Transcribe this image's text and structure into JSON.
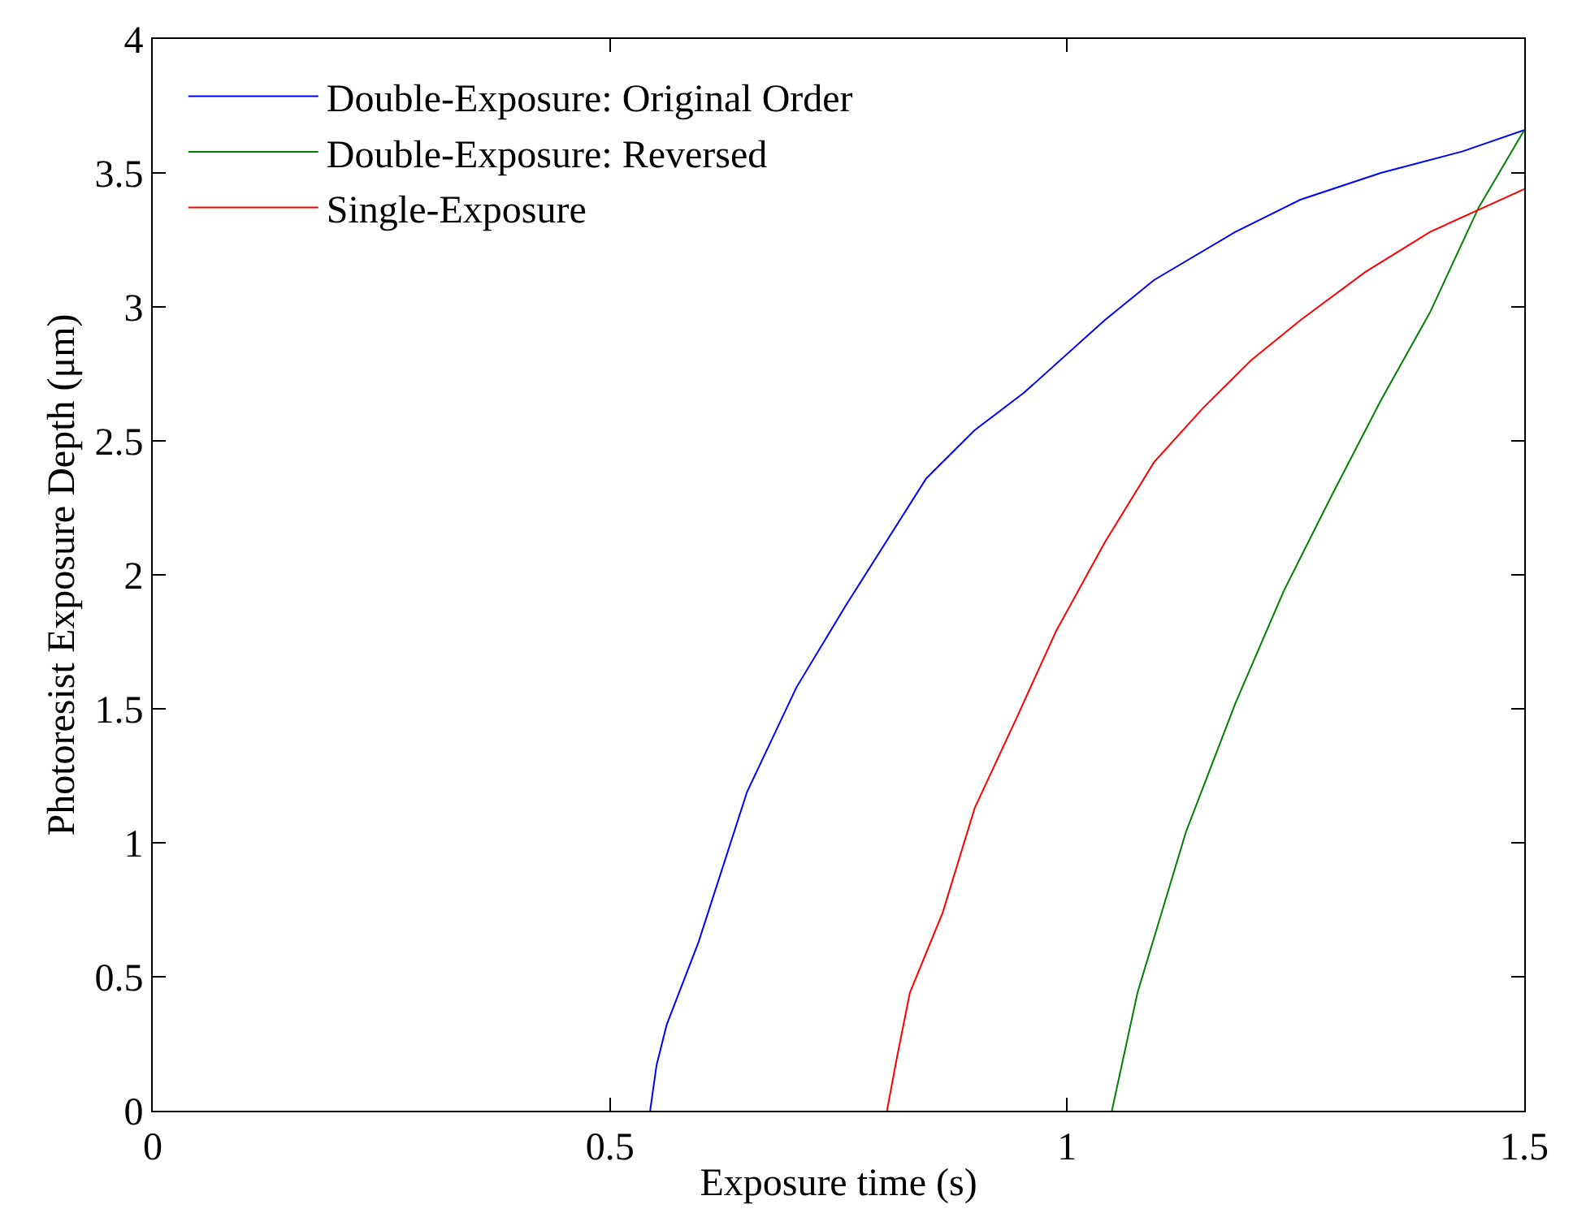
{
  "chart_data": {
    "type": "line",
    "xlabel": "Exposure time (s)",
    "ylabel": "Photoresist Exposure Depth (μm)",
    "xlim": [
      0,
      1.5
    ],
    "xticks": [
      0,
      0.5,
      1,
      1.5
    ],
    "ylim": [
      0,
      4
    ],
    "yticks": [
      0,
      0.5,
      1,
      1.5,
      2,
      2.5,
      3,
      3.5,
      4
    ],
    "legend": "top left",
    "marker": "none",
    "line_style": "solid",
    "series": [
      {
        "name": "Double-Exposure: Original Order",
        "color": "#0000ff",
        "x": [
          0.544,
          0.551,
          0.562,
          0.597,
          0.65,
          0.704,
          0.757,
          0.846,
          0.899,
          0.953,
          1.041,
          1.095,
          1.184,
          1.255,
          1.343,
          1.432,
          1.5
        ],
        "values": [
          0,
          0.17,
          0.32,
          0.63,
          1.19,
          1.58,
          1.88,
          2.36,
          2.54,
          2.68,
          2.95,
          3.1,
          3.28,
          3.4,
          3.5,
          3.58,
          3.66
        ]
      },
      {
        "name": "Double-Exposure: Reversed",
        "color": "#008000",
        "x": [
          1.049,
          1.077,
          1.13,
          1.184,
          1.237,
          1.29,
          1.343,
          1.397,
          1.45,
          1.5
        ],
        "values": [
          0,
          0.44,
          1.04,
          1.52,
          1.94,
          2.3,
          2.65,
          2.98,
          3.37,
          3.66
        ]
      },
      {
        "name": "Single-Exposure",
        "color": "#ff0000",
        "x": [
          0.803,
          0.814,
          0.828,
          0.864,
          0.899,
          0.944,
          0.988,
          1.041,
          1.095,
          1.148,
          1.201,
          1.255,
          1.326,
          1.397,
          1.5
        ],
        "values": [
          0,
          0.2,
          0.44,
          0.74,
          1.13,
          1.46,
          1.79,
          2.12,
          2.42,
          2.62,
          2.8,
          2.95,
          3.13,
          3.28,
          3.44
        ]
      }
    ]
  }
}
